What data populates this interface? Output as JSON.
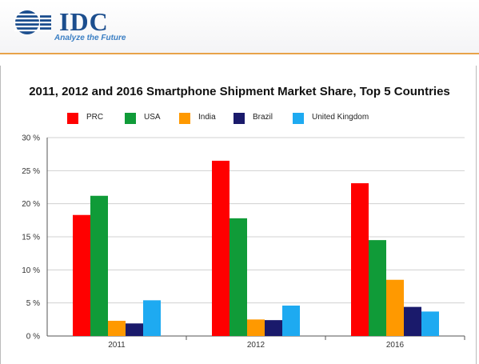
{
  "logo": {
    "text": "IDC",
    "tagline": "Analyze the Future"
  },
  "chart_data": {
    "type": "bar",
    "title": "2011, 2012 and 2016 Smartphone Shipment Market Share, Top 5 Countries",
    "categories": [
      "2011",
      "2012",
      "2016"
    ],
    "series": [
      {
        "name": "PRC",
        "color": "#ff0000",
        "values": [
          18.3,
          26.5,
          23.1
        ]
      },
      {
        "name": "USA",
        "color": "#109b38",
        "values": [
          21.2,
          17.8,
          14.5
        ]
      },
      {
        "name": "India",
        "color": "#ff9900",
        "values": [
          2.3,
          2.5,
          8.5
        ]
      },
      {
        "name": "Brazil",
        "color": "#1a1a6b",
        "values": [
          1.9,
          2.4,
          4.4
        ]
      },
      {
        "name": "United Kingdom",
        "color": "#1eaaf1",
        "values": [
          5.4,
          4.6,
          3.7
        ]
      }
    ],
    "ylim": [
      0,
      30
    ],
    "yticks": [
      0,
      5,
      10,
      15,
      20,
      25,
      30
    ],
    "ytick_labels": [
      "0 %",
      "5 %",
      "10 %",
      "15 %",
      "20 %",
      "25 %",
      "30 %"
    ],
    "grid": true,
    "legend_position": "top"
  }
}
